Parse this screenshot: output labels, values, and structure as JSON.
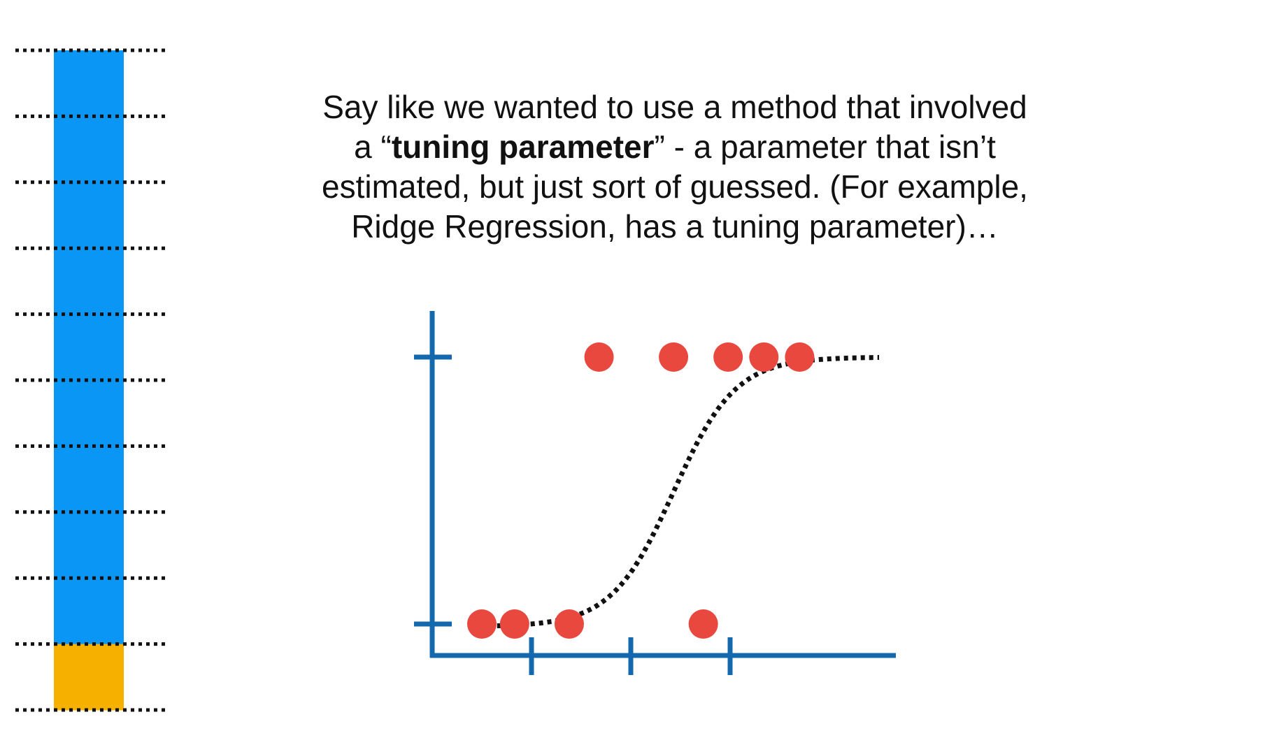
{
  "caption": {
    "line1": "Say like we wanted to use a method that involved",
    "line2_pre": "a “",
    "line2_bold": "tuning parameter",
    "line2_post": "” - a parameter that isn’t",
    "line3": "estimated, but just sort of guessed. (For example,",
    "line4": "Ridge Regression, has a tuning parameter)…"
  },
  "data_column": {
    "total_blocks": 10,
    "training_blocks": 9,
    "testing_blocks": 1,
    "training_color": "#0A96F5",
    "testing_color": "#F5B000"
  },
  "chart_data": {
    "type": "scatter",
    "x_ticks": [
      1,
      2,
      3
    ],
    "y_ticks": [
      0,
      1
    ],
    "xlim": [
      -0.2,
      4.5
    ],
    "points": [
      {
        "x": 0.5,
        "y": 0
      },
      {
        "x": 0.83,
        "y": 0
      },
      {
        "x": 1.38,
        "y": 0
      },
      {
        "x": 2.73,
        "y": 0
      },
      {
        "x": 1.68,
        "y": 1
      },
      {
        "x": 2.43,
        "y": 1
      },
      {
        "x": 2.98,
        "y": 1
      },
      {
        "x": 3.34,
        "y": 1
      },
      {
        "x": 3.7,
        "y": 1
      }
    ],
    "fit_curve": {
      "type": "logistic",
      "midpoint": 2.43,
      "range": [
        0.4,
        4.5
      ]
    },
    "axis_color": "#1368AE",
    "point_color": "#E8483E"
  },
  "icons": {
    "separator": "dotted-line"
  }
}
